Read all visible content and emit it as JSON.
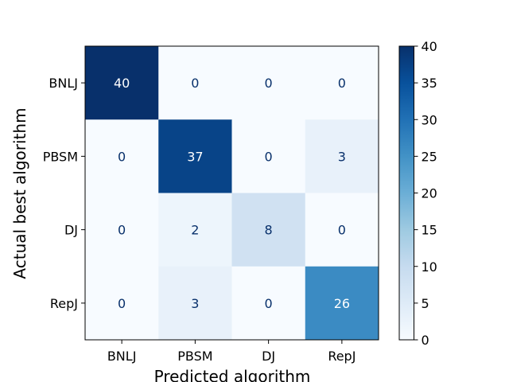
{
  "chart_data": {
    "type": "heatmap",
    "title": "",
    "xlabel": "Predicted algorithm",
    "ylabel": "Actual best algorithm",
    "x_categories": [
      "BNLJ",
      "PBSM",
      "DJ",
      "RepJ"
    ],
    "y_categories": [
      "BNLJ",
      "PBSM",
      "DJ",
      "RepJ"
    ],
    "values": [
      [
        40,
        0,
        0,
        0
      ],
      [
        0,
        37,
        0,
        3
      ],
      [
        0,
        2,
        8,
        0
      ],
      [
        0,
        3,
        0,
        26
      ]
    ],
    "colorbar": {
      "range": [
        0,
        40
      ],
      "ticks": [
        0,
        5,
        10,
        15,
        20,
        25,
        30,
        35,
        40
      ],
      "colormap": "Blues"
    },
    "grid": false
  }
}
